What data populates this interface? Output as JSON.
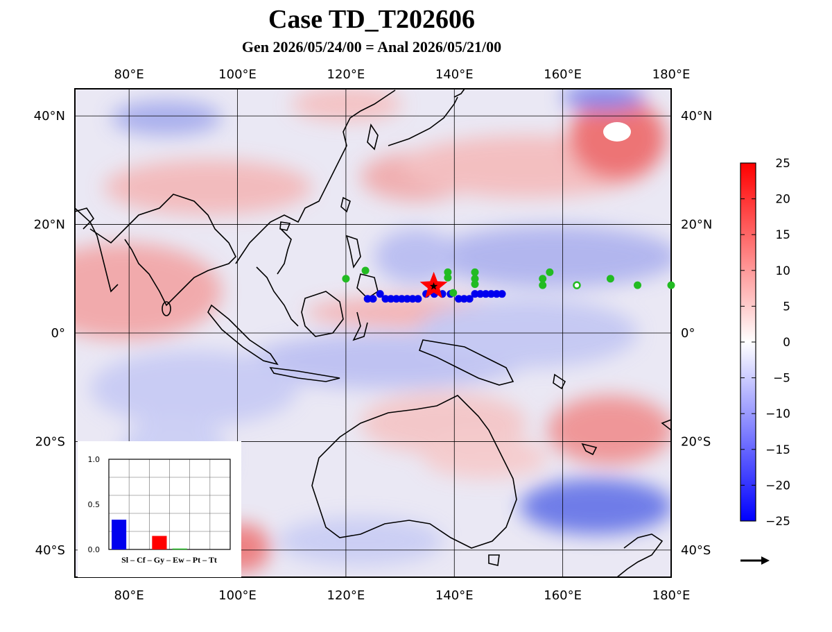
{
  "title": "Case TD_T202606",
  "subtitle": "Gen 2026/05/24/00 = Anal 2026/05/21/00",
  "map": {
    "lon_range": [
      70,
      180
    ],
    "lat_range": [
      -45,
      45
    ],
    "lon_ticks": [
      "80°E",
      "100°E",
      "120°E",
      "140°E",
      "160°E",
      "180°E"
    ],
    "lat_ticks": [
      "40°N",
      "20°N",
      "0°",
      "20°S",
      "40°S"
    ],
    "gridlines": true
  },
  "colorbar": {
    "min": -25,
    "max": 25,
    "labels": [
      "25",
      "20",
      "15",
      "10",
      "5",
      "0",
      "−5",
      "−10",
      "−15",
      "−20",
      "−25"
    ],
    "colors": {
      "high": "#ff0000",
      "mid": "#ffffff",
      "low": "#0000ff"
    }
  },
  "genesis_marker": {
    "lon": 136.2,
    "lat": 8.6,
    "shape": "star",
    "color": "#ff0000"
  },
  "blue_track": {
    "color": "#0000ee",
    "points": [
      [
        124.0,
        6.3
      ],
      [
        125.0,
        6.3
      ],
      [
        126.3,
        7.2
      ],
      [
        127.3,
        6.3
      ],
      [
        128.3,
        6.3
      ],
      [
        129.3,
        6.3
      ],
      [
        130.3,
        6.3
      ],
      [
        131.3,
        6.3
      ],
      [
        132.3,
        6.3
      ],
      [
        133.3,
        6.3
      ],
      [
        134.8,
        7.2
      ],
      [
        136.3,
        7.2
      ],
      [
        137.8,
        7.2
      ],
      [
        139.3,
        7.2
      ],
      [
        140.8,
        6.3
      ],
      [
        141.8,
        6.3
      ],
      [
        142.8,
        6.3
      ],
      [
        143.8,
        7.2
      ],
      [
        144.8,
        7.2
      ],
      [
        145.8,
        7.2
      ],
      [
        146.8,
        7.2
      ],
      [
        147.8,
        7.2
      ],
      [
        148.8,
        7.2
      ]
    ]
  },
  "green_points": {
    "color": "#22bb22",
    "points": [
      [
        120.0,
        10.0
      ],
      [
        123.6,
        11.5
      ],
      [
        138.8,
        11.2
      ],
      [
        138.8,
        10.2
      ],
      [
        139.8,
        7.4
      ],
      [
        143.8,
        11.2
      ],
      [
        143.8,
        10.0
      ],
      [
        143.8,
        9.0
      ],
      [
        156.3,
        10.0
      ],
      [
        156.3,
        8.8
      ],
      [
        157.6,
        11.2
      ],
      [
        168.8,
        10.0
      ],
      [
        173.8,
        8.8
      ],
      [
        180.0,
        8.8
      ]
    ],
    "open_points": [
      [
        162.6,
        8.8
      ]
    ]
  },
  "inset": {
    "categories": [
      "Sl",
      "Cf",
      "Gy",
      "Ew",
      "Pt",
      "Tt"
    ],
    "category_label": "Sl – Cf – Gy – Ew – Pt – Tt",
    "values": [
      0.33,
      0.0,
      0.15,
      0.01,
      0.0,
      0.0
    ],
    "colors": [
      "#0000ee",
      "#0000ee",
      "#ff0000",
      "#22bb22",
      "#888888",
      "#888888"
    ],
    "ylim": [
      0,
      1
    ],
    "y_ticks": [
      "1.0",
      "0.5",
      "0.0"
    ]
  },
  "arrow_legend": "→"
}
